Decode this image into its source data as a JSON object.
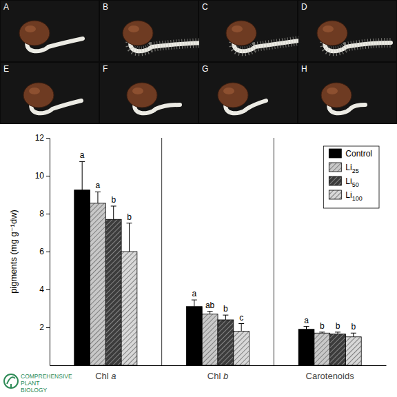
{
  "photo_labels": [
    "A",
    "B",
    "C",
    "D",
    "E",
    "F",
    "G",
    "H"
  ],
  "watermark": [
    "COMPREHENSIVE",
    "PLANT",
    "BIOLOGY"
  ],
  "chart_data": {
    "type": "bar",
    "categories": [
      "Chl a",
      "Chl b",
      "Carotenoids"
    ],
    "y_label": "pigments (mg g⁻¹dw)",
    "ylim": [
      0,
      12
    ],
    "yticks": [
      2,
      4,
      6,
      8,
      10,
      12
    ],
    "legend": "top-right",
    "series": [
      {
        "name": "Control",
        "color": "#000000",
        "values": [
          9.25,
          3.1,
          1.9
        ],
        "errors": [
          1.5,
          0.35,
          0.15
        ],
        "letters": [
          "a",
          "a",
          "a"
        ]
      },
      {
        "name": "Li25",
        "color": "#c8c8c8",
        "values": [
          8.55,
          2.7,
          1.7
        ],
        "errors": [
          0.6,
          0.15,
          0.05
        ],
        "letters": [
          "a",
          "ab",
          "b"
        ]
      },
      {
        "name": "Li50",
        "color": "#3c3c3c",
        "values": [
          7.7,
          2.4,
          1.65
        ],
        "errors": [
          0.7,
          0.25,
          0.1
        ],
        "letters": [
          "b",
          "b",
          "b"
        ]
      },
      {
        "name": "Li100",
        "color": "#d8d8d8",
        "values": [
          6.0,
          1.8,
          1.5
        ],
        "errors": [
          1.5,
          0.4,
          0.2
        ],
        "letters": [
          "b",
          "c",
          "b"
        ]
      }
    ]
  }
}
